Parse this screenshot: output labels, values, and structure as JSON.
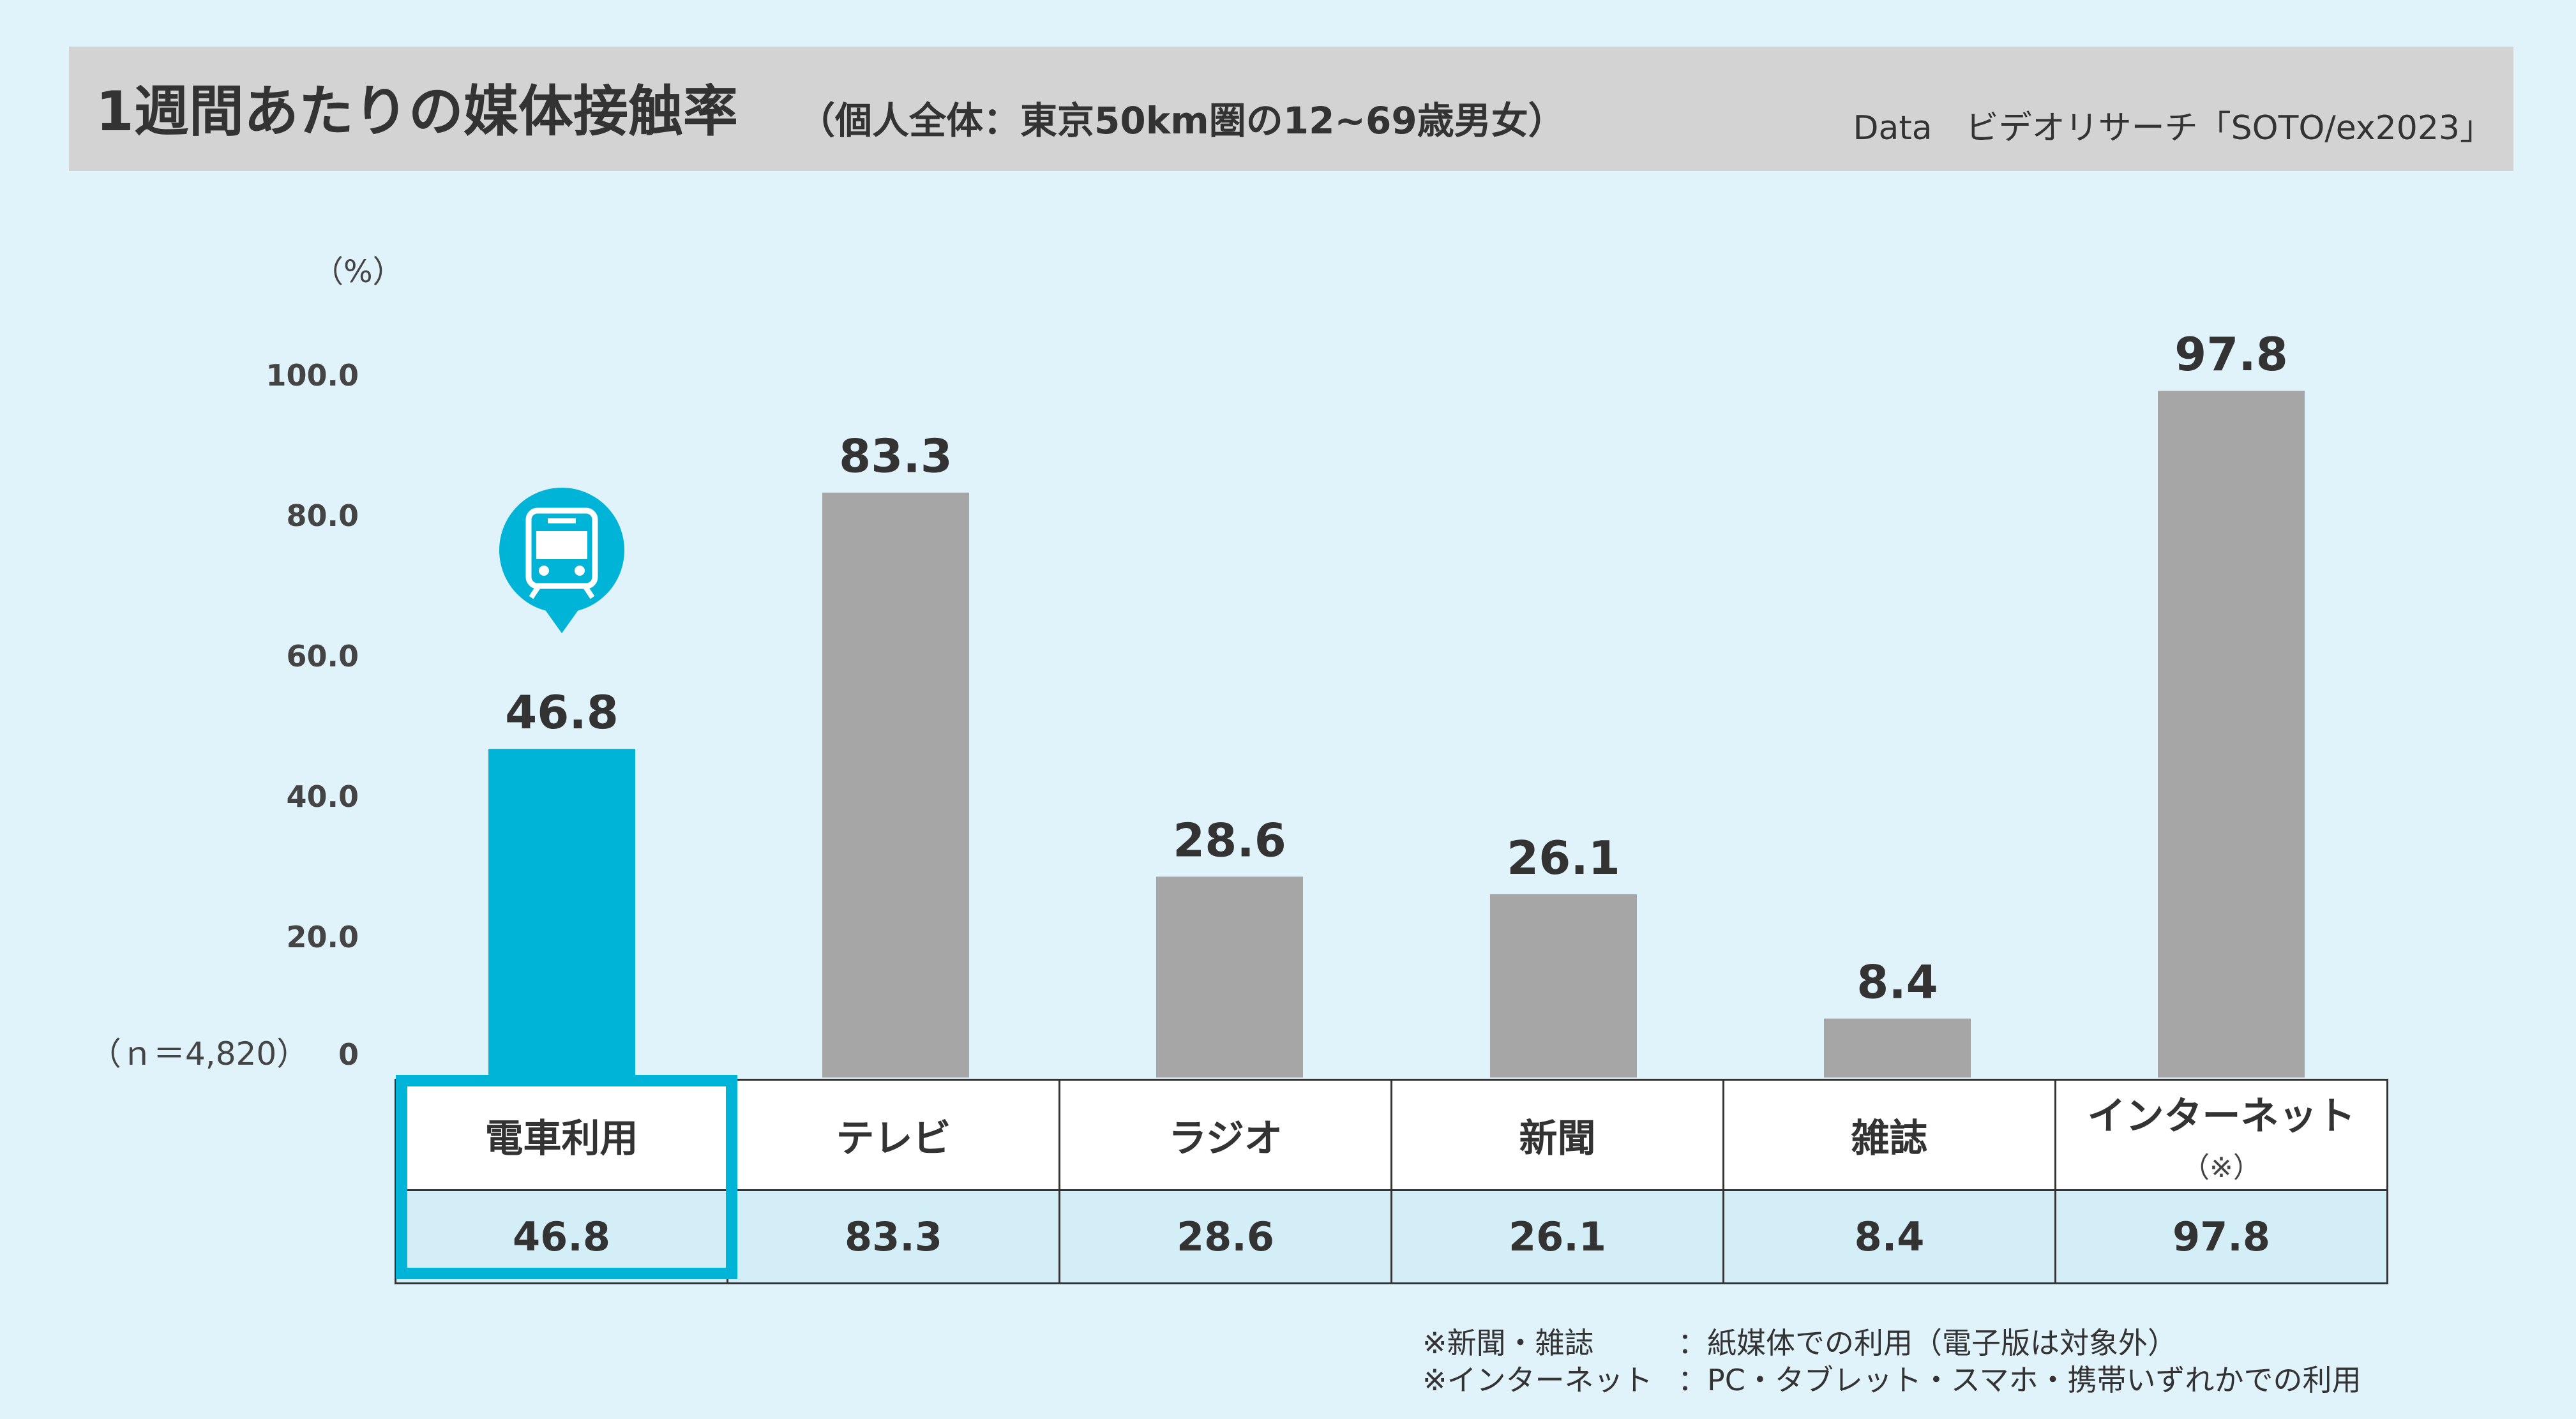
{
  "header": {
    "title": "1週間あたりの媒体接触率",
    "subtitle": "（個人全体：東京50km圏の12~69歳男女）",
    "source": "Data　ビデオリサーチ「SOTO/ex2023」"
  },
  "icons": {
    "highlight_icon": "train-icon"
  },
  "colors": {
    "highlight": "#00b4d8",
    "bar": "#a6a6a6",
    "background": "#e0f2fa"
  },
  "chart_data": {
    "type": "bar",
    "categories": [
      "電車利用",
      "テレビ",
      "ラジオ",
      "新聞",
      "雑誌",
      "インターネット"
    ],
    "category_notes": [
      "",
      "",
      "",
      "",
      "",
      "（※）"
    ],
    "values": [
      46.8,
      83.3,
      28.6,
      26.1,
      8.4,
      97.8
    ],
    "value_labels": [
      "46.8",
      "83.3",
      "28.6",
      "26.1",
      "8.4",
      "97.8"
    ],
    "highlight_index": 0,
    "ylabel": "（%）",
    "ylim": [
      0,
      100
    ],
    "yticks": [
      0,
      20,
      40,
      60,
      80,
      100
    ],
    "ytick_labels": [
      "0",
      "20.0",
      "40.0",
      "60.0",
      "80.0",
      "100.0"
    ],
    "n_label": "（ｎ＝4,820）",
    "grid": false
  },
  "footnotes": [
    {
      "key": "※新聞・雑誌",
      "text": "：紙媒体での利用（電子版は対象外）"
    },
    {
      "key": "※インターネット",
      "text": "：PC・タブレット・スマホ・携帯いずれかでの利用"
    }
  ]
}
